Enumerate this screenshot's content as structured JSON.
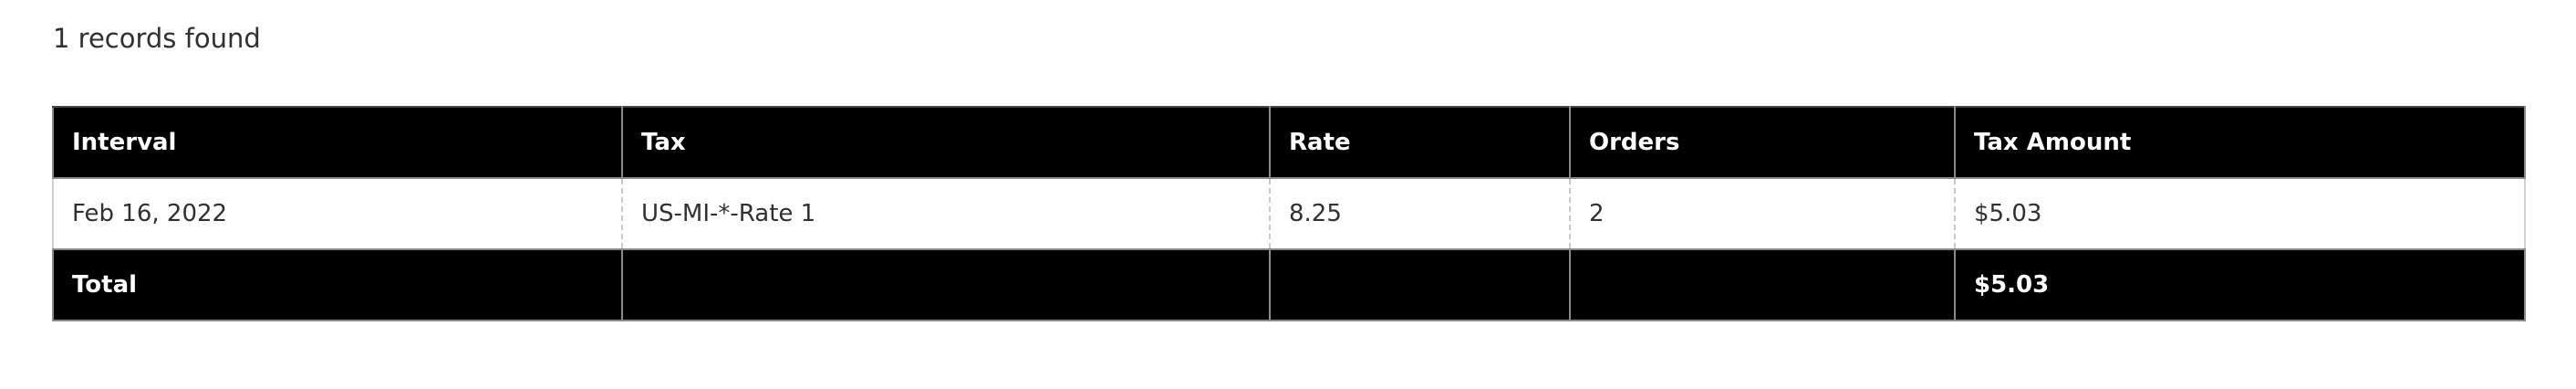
{
  "summary": {
    "records_found": "1 records found"
  },
  "table": {
    "headers": [
      "Interval",
      "Tax",
      "Rate",
      "Orders",
      "Tax Amount"
    ],
    "rows": [
      [
        "Feb 16, 2022",
        "US-MI-*-Rate 1",
        "8.25",
        "2",
        "$5.03"
      ]
    ],
    "totals": [
      "Total",
      "",
      "",
      "",
      "$5.03"
    ]
  },
  "colors": {
    "header_background": "#000000",
    "header_text": "#ffffff",
    "body_text": "#303030"
  }
}
